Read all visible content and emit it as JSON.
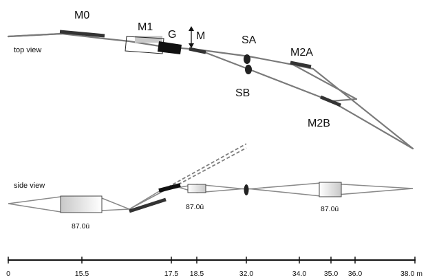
{
  "top_view": {
    "view_label": "top view",
    "labels": {
      "m0": "M0",
      "m1": "M1",
      "g": "G",
      "m": "M",
      "sa": "SA",
      "sb": "SB",
      "m2a": "M2A",
      "m2b": "M2B"
    }
  },
  "side_view": {
    "view_label": "side view",
    "angle_labels": [
      "87.0ū",
      "87.0ū",
      "87.0ū"
    ]
  },
  "scale": {
    "ticks": [
      "0",
      "15.5",
      "17.5",
      "18.5",
      "32.0",
      "34.0",
      "35.0",
      "36.0",
      "38.0 m"
    ]
  },
  "colors": {
    "beam": "#7a7a7a",
    "mirror": "#333333",
    "grating": "#111111"
  }
}
